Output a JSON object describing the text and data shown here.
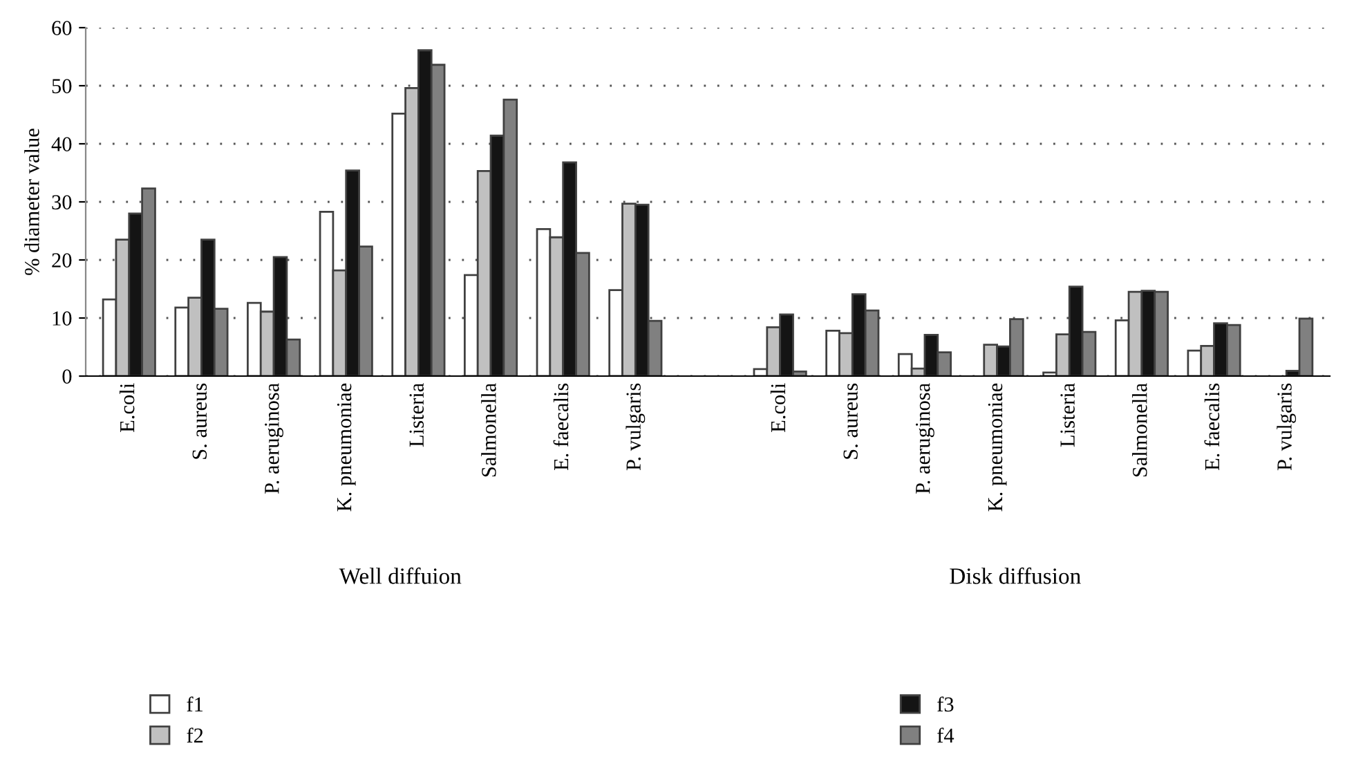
{
  "chart_data": {
    "type": "bar",
    "ylabel": "% diameter value",
    "categories": [
      "E.coli",
      "S. aureus",
      "P. aeruginosa",
      "K. pneumoniae",
      "Listeria",
      "Salmonella",
      "E. faecalis",
      "P. vulgaris",
      null,
      "E.coli",
      "S. aureus",
      "P. aeruginosa",
      "K. pneumoniae",
      "Listeria",
      "Salmonella",
      "E. faecalis",
      "P. vulgaris"
    ],
    "series": [
      {
        "name": "f1",
        "color": "#ffffff",
        "values": [
          13.2,
          11.8,
          12.6,
          28.3,
          45.2,
          17.4,
          25.3,
          14.8,
          null,
          1.2,
          7.8,
          3.8,
          null,
          0.6,
          9.6,
          4.4,
          null
        ]
      },
      {
        "name": "f2",
        "color": "#c0c0c0",
        "values": [
          23.5,
          13.5,
          11.1,
          18.2,
          49.6,
          35.3,
          23.9,
          29.7,
          null,
          8.4,
          7.4,
          1.3,
          5.4,
          7.2,
          14.5,
          5.2,
          null
        ]
      },
      {
        "name": "f3",
        "color": "#141414",
        "values": [
          28.0,
          23.5,
          20.5,
          35.4,
          56.1,
          41.4,
          36.8,
          29.5,
          null,
          10.6,
          14.1,
          7.1,
          5.1,
          15.4,
          14.7,
          9.1,
          0.9
        ]
      },
      {
        "name": "f4",
        "color": "#808080",
        "values": [
          32.3,
          11.6,
          6.3,
          22.3,
          53.6,
          47.6,
          21.2,
          9.5,
          null,
          0.8,
          11.3,
          4.1,
          9.8,
          7.6,
          14.5,
          8.8,
          9.9
        ]
      }
    ],
    "annotations": [
      "Well diffuion",
      "Disk diffusion"
    ],
    "ylim": [
      0,
      60
    ],
    "yticks": [
      0,
      10,
      20,
      30,
      40,
      50,
      60
    ],
    "grid": "y",
    "legend": "bottom"
  }
}
